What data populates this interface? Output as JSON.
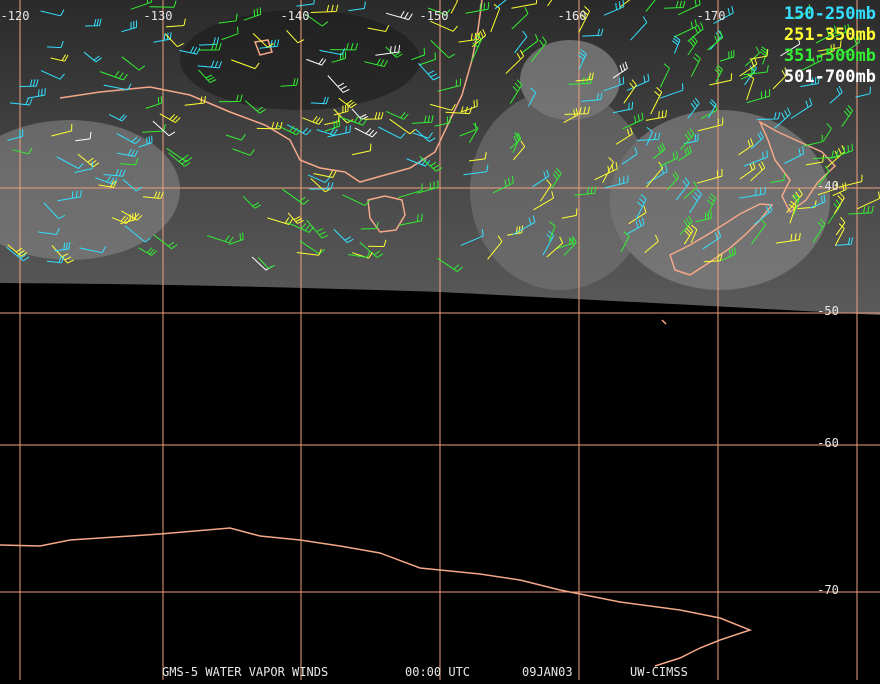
{
  "header": {
    "lon_labels": [
      "-120",
      "-130",
      "-140",
      "-150",
      "-160",
      "-170"
    ]
  },
  "map": {
    "lat_labels": [
      "-40",
      "-50",
      "-60",
      "-70"
    ]
  },
  "legend": {
    "items": [
      {
        "label": "150-250mb",
        "color": "#33e0ff"
      },
      {
        "label": "251-350mb",
        "color": "#ffff33"
      },
      {
        "label": "351-500mb",
        "color": "#33ee33"
      },
      {
        "label": "501-700mb",
        "color": "#ffffff"
      }
    ]
  },
  "footer": {
    "product": "GMS-5 WATER VAPOR WINDS",
    "time": "00:00 UTC",
    "date": "09JAN03",
    "source": "UW-CIMSS"
  }
}
